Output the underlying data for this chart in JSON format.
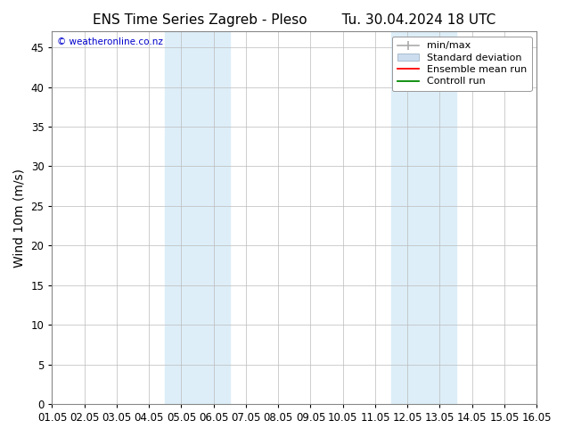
{
  "title": "ENS Time Series Zagreb - Pleso        Tu. 30.04.2024 18 UTC",
  "ylabel": "Wind 10m (m/s)",
  "ylim": [
    0,
    47
  ],
  "yticks": [
    0,
    5,
    10,
    15,
    20,
    25,
    30,
    35,
    40,
    45
  ],
  "xtick_labels": [
    "01.05",
    "02.05",
    "03.05",
    "04.05",
    "05.05",
    "06.05",
    "07.05",
    "08.05",
    "09.05",
    "10.05",
    "11.05",
    "12.05",
    "13.05",
    "14.05",
    "15.05",
    "16.05"
  ],
  "shaded_regions": [
    {
      "xstart": 3.5,
      "xend": 5.5,
      "color": "#ddeef8"
    },
    {
      "xstart": 10.5,
      "xend": 12.5,
      "color": "#ddeef8"
    }
  ],
  "background_color": "#ffffff",
  "plot_bg_color": "#ffffff",
  "grid_color": "#bbbbbb",
  "watermark_text": "© weatheronline.co.nz",
  "watermark_color": "#0000cc",
  "legend_items": [
    {
      "label": "min/max",
      "color": "#999999",
      "style": "errorbar"
    },
    {
      "label": "Standard deviation",
      "color": "#ccddef",
      "style": "band"
    },
    {
      "label": "Ensemble mean run",
      "color": "#ff0000",
      "style": "line"
    },
    {
      "label": "Controll run",
      "color": "#008800",
      "style": "line"
    }
  ],
  "title_fontsize": 11,
  "axis_fontsize": 10,
  "tick_fontsize": 8.5,
  "legend_fontsize": 8
}
